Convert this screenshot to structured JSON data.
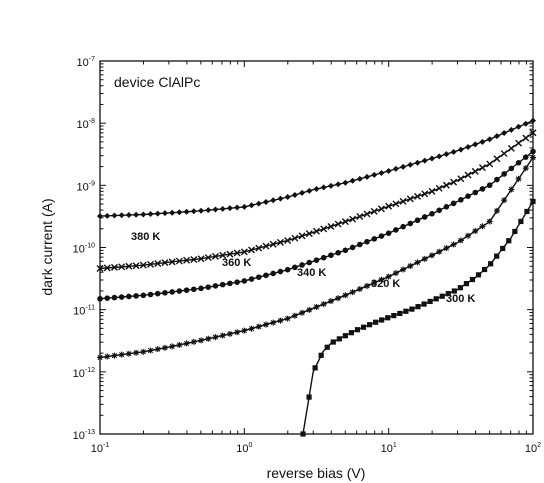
{
  "chart_data": {
    "type": "scatter",
    "annotation": "device ClAlPc",
    "xlabel": "reverse bias (V)",
    "ylabel": "dark current (A)",
    "x_scale": "log",
    "y_scale": "log",
    "xlim": [
      0.1,
      100
    ],
    "ylim": [
      1e-13,
      1e-07
    ],
    "x_ticks": [
      {
        "value": 0.1,
        "base": "10",
        "exp": "-1"
      },
      {
        "value": 1,
        "base": "10",
        "exp": "0"
      },
      {
        "value": 10,
        "base": "10",
        "exp": "1"
      },
      {
        "value": 100,
        "base": "10",
        "exp": "2"
      }
    ],
    "y_ticks": [
      {
        "value": 1e-13,
        "base": "10",
        "exp": "-13"
      },
      {
        "value": 1e-12,
        "base": "10",
        "exp": "-12"
      },
      {
        "value": 1e-11,
        "base": "10",
        "exp": "-11"
      },
      {
        "value": 1e-10,
        "base": "10",
        "exp": "-10"
      },
      {
        "value": 1e-09,
        "base": "10",
        "exp": "-9"
      },
      {
        "value": 1e-08,
        "base": "10",
        "exp": "-8"
      },
      {
        "value": 1e-07,
        "base": "10",
        "exp": "-7"
      }
    ],
    "grid": false,
    "series": [
      {
        "name": "380 K",
        "marker": "diamond",
        "color": "#111111",
        "x": [
          0.1,
          0.2,
          0.3,
          0.5,
          1,
          2,
          3,
          5,
          10,
          20,
          30,
          50,
          100
        ],
        "y": [
          3.2e-10,
          3.4e-10,
          3.6e-10,
          3.9e-10,
          4.5e-10,
          6.5e-10,
          8.5e-10,
          1.1e-09,
          1.7e-09,
          2.7e-09,
          3.6e-09,
          5.5e-09,
          1.1e-08
        ]
      },
      {
        "name": "360 K",
        "marker": "x",
        "color": "#111111",
        "x": [
          0.1,
          0.2,
          0.3,
          0.5,
          1,
          2,
          3,
          5,
          10,
          20,
          30,
          50,
          100
        ],
        "y": [
          4.6e-11,
          5.2e-11,
          5.8e-11,
          6.6e-11,
          8.5e-11,
          1.3e-10,
          1.75e-10,
          2.6e-10,
          4.6e-10,
          8e-10,
          1.2e-09,
          2.2e-09,
          7e-09
        ]
      },
      {
        "name": "340 K",
        "marker": "circle",
        "color": "#111111",
        "x": [
          0.1,
          0.2,
          0.3,
          0.5,
          1,
          2,
          3,
          5,
          10,
          20,
          30,
          50,
          100
        ],
        "y": [
          1.5e-11,
          1.7e-11,
          1.9e-11,
          2.2e-11,
          2.9e-11,
          4.4e-11,
          6e-11,
          9e-11,
          1.7e-10,
          3.5e-10,
          5.5e-10,
          1e-09,
          3.5e-09
        ]
      },
      {
        "name": "320 K",
        "marker": "star",
        "color": "#111111",
        "x": [
          0.1,
          0.2,
          0.3,
          0.5,
          1,
          2,
          3,
          5,
          10,
          20,
          30,
          50,
          100
        ],
        "y": [
          1.7e-12,
          2.1e-12,
          2.5e-12,
          3.2e-12,
          4.6e-12,
          7.2e-12,
          1.05e-11,
          1.7e-11,
          3.4e-11,
          7.5e-11,
          1.2e-10,
          2.6e-10,
          2.8e-09
        ]
      },
      {
        "name": "300 K",
        "marker": "square",
        "color": "#111111",
        "x": [
          2.55,
          3,
          3.5,
          4,
          5,
          6,
          8,
          10,
          15,
          20,
          30,
          40,
          50,
          70,
          100
        ],
        "y": [
          1e-13,
          1e-12,
          2.1e-12,
          2.9e-12,
          3.8e-12,
          4.7e-12,
          6.2e-12,
          7.5e-12,
          1.05e-11,
          1.4e-11,
          2.1e-11,
          3.3e-11,
          5.2e-11,
          1.4e-10,
          5.5e-10
        ]
      }
    ],
    "series_labels": [
      "380 K",
      "360 K",
      "340 K",
      "320 K",
      "300 K"
    ]
  }
}
